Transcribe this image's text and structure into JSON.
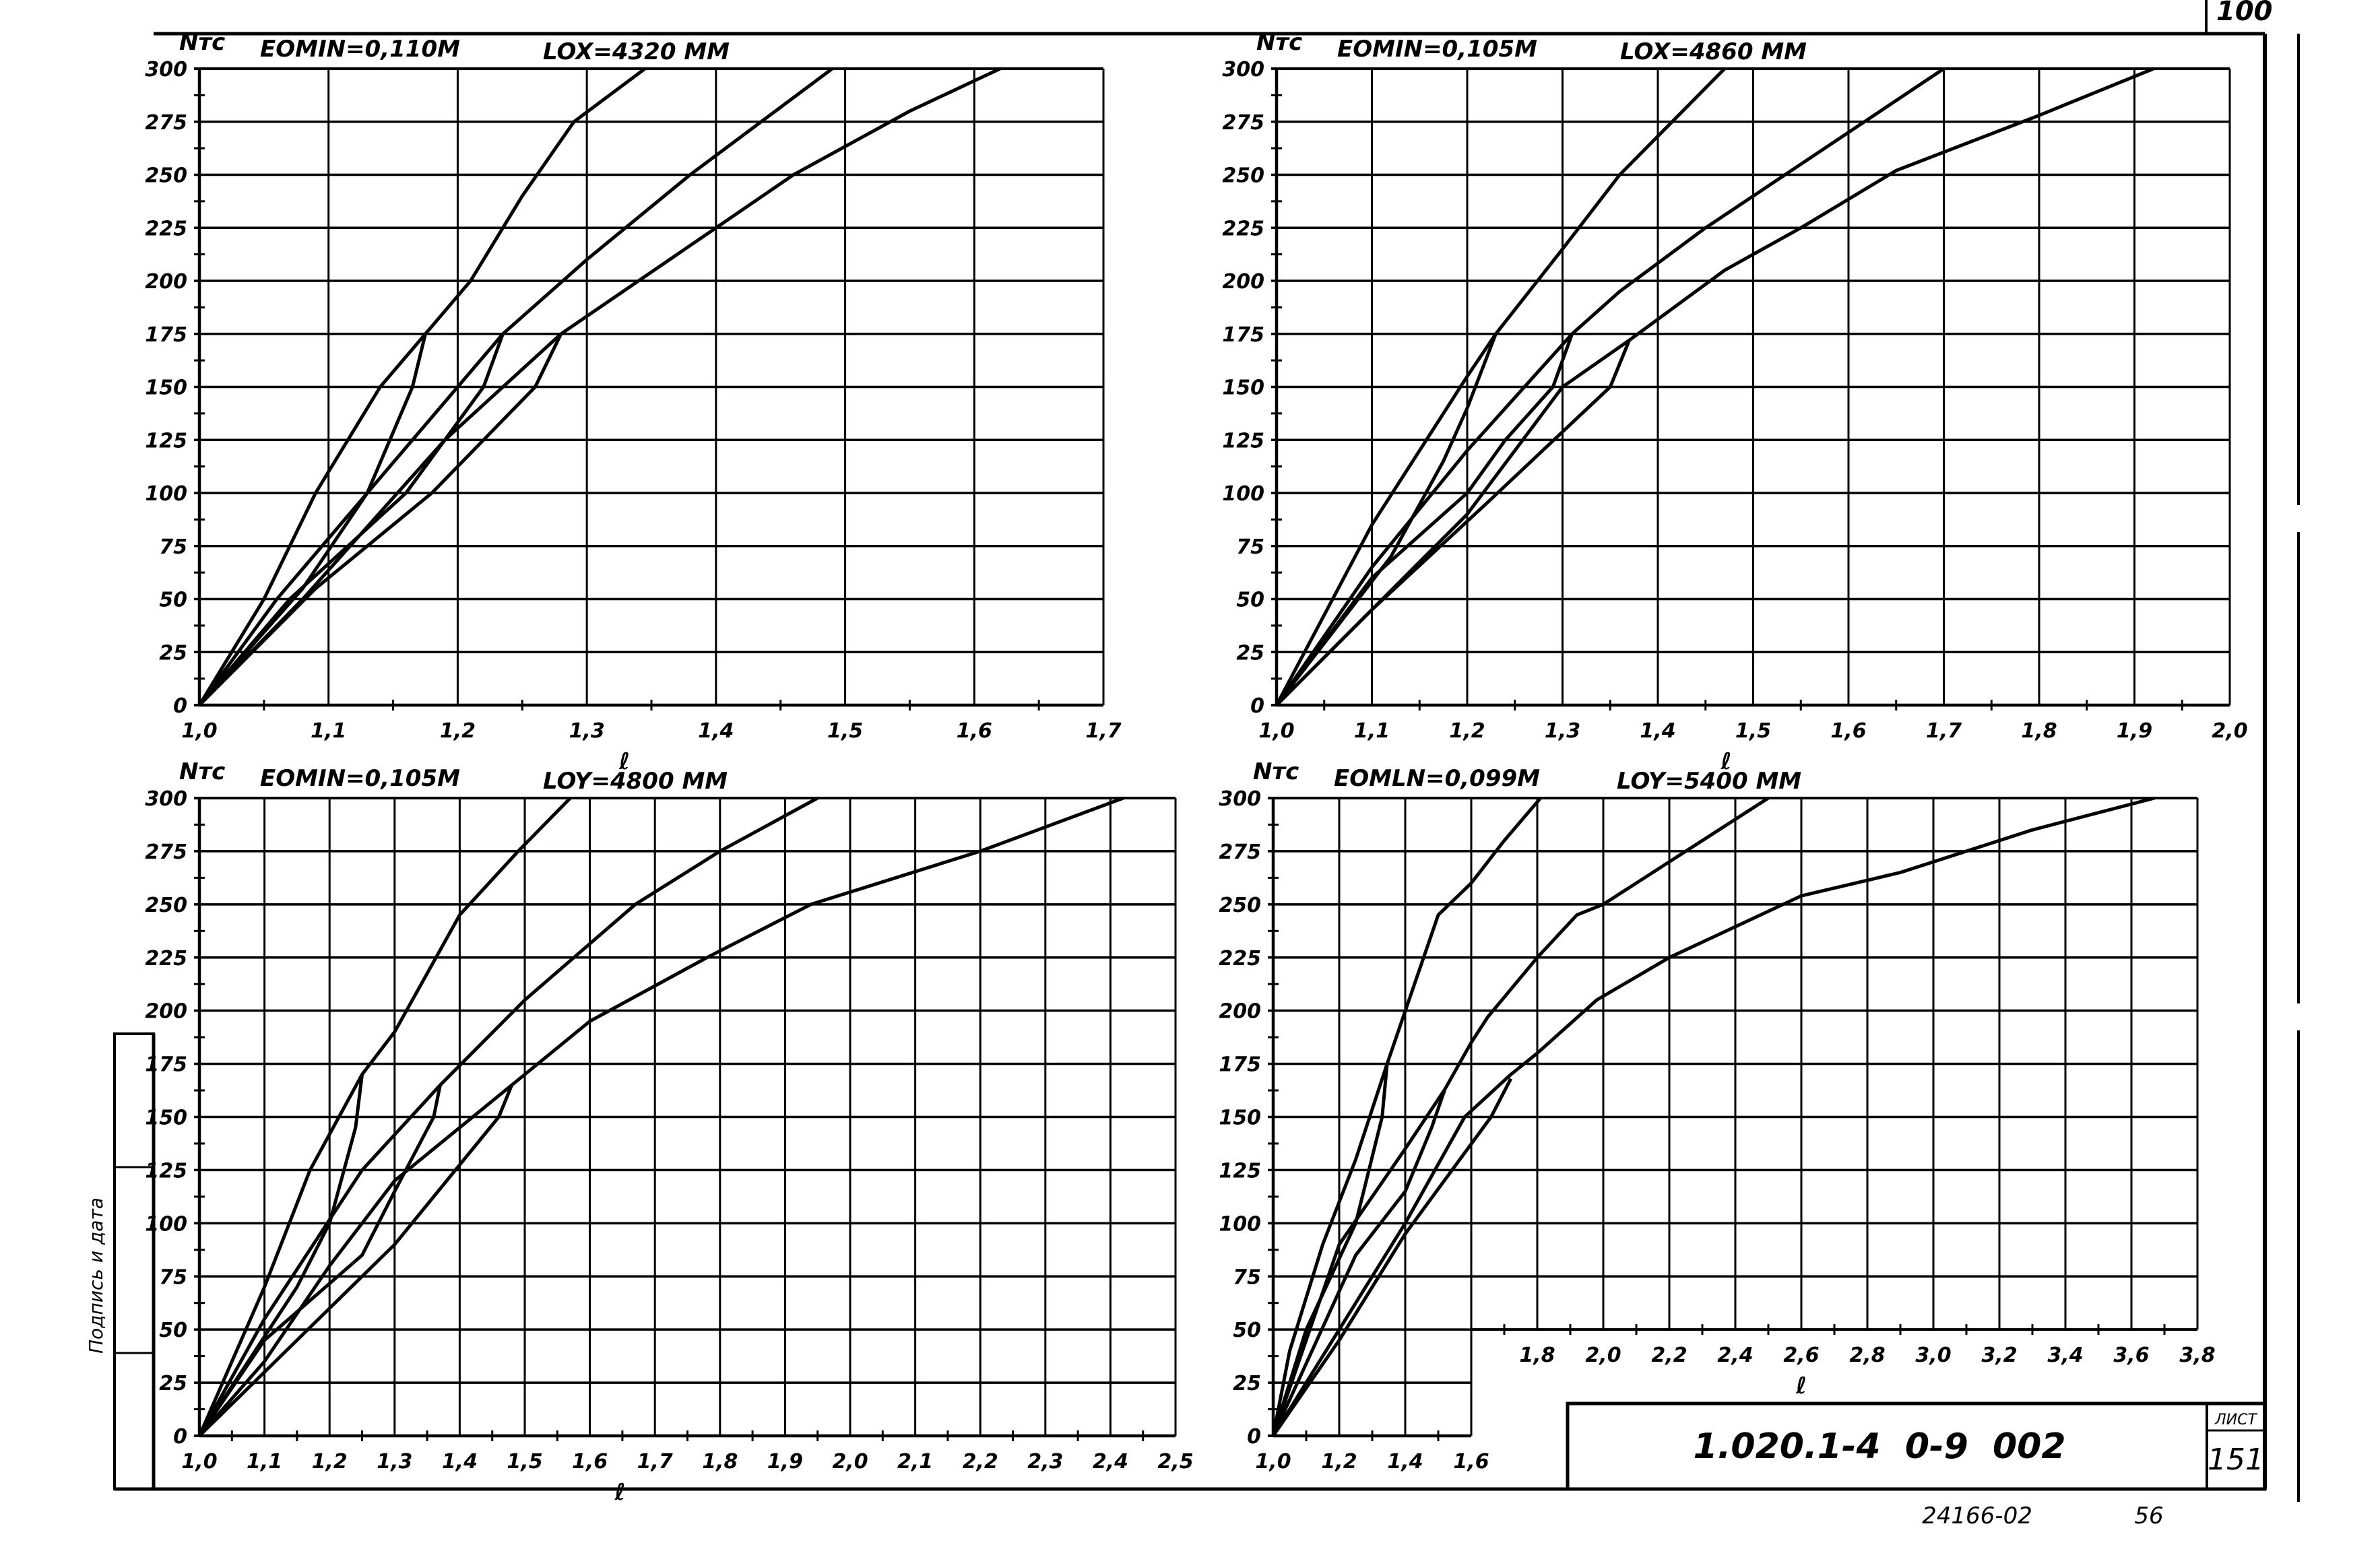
{
  "sheet": {
    "corner_number": "100",
    "side_stamp_label": "Подпись и дата",
    "document_code": "1.020.1-4  0-9  002",
    "sheet_label": "ЛИСТ",
    "sheet_number": "151",
    "archive_number": "24166-02",
    "page_number": "56"
  },
  "chart_data": [
    {
      "type": "line",
      "title": "EOMIN=0,110M",
      "subtitle": "LOX=4320 MM",
      "ylabel": "Nтс",
      "xlabel": "ℓ",
      "xlim": [
        1.0,
        1.7
      ],
      "ylim": [
        0,
        300
      ],
      "x_ticks": [
        "1,0",
        "1,1",
        "1,2",
        "1,3",
        "1,4",
        "1,5",
        "1,6",
        "1,7"
      ],
      "y_ticks": [
        "0",
        "25",
        "50",
        "75",
        "100",
        "125",
        "150",
        "175",
        "200",
        "225",
        "250",
        "275",
        "300"
      ],
      "grid": true,
      "series": [
        {
          "name": "curve-1",
          "points": [
            [
              1.0,
              0
            ],
            [
              1.05,
              50
            ],
            [
              1.09,
              100
            ],
            [
              1.14,
              150
            ],
            [
              1.175,
              175
            ],
            [
              1.21,
              200
            ],
            [
              1.25,
              240
            ],
            [
              1.29,
              275
            ],
            [
              1.345,
              300
            ]
          ]
        },
        {
          "name": "curve-1-branch",
          "points": [
            [
              1.0,
              0
            ],
            [
              1.08,
              55
            ],
            [
              1.13,
              100
            ],
            [
              1.165,
              150
            ],
            [
              1.175,
              175
            ]
          ]
        },
        {
          "name": "curve-2",
          "points": [
            [
              1.0,
              0
            ],
            [
              1.06,
              50
            ],
            [
              1.13,
              100
            ],
            [
              1.2,
              150
            ],
            [
              1.235,
              175
            ],
            [
              1.3,
              210
            ],
            [
              1.38,
              250
            ],
            [
              1.49,
              300
            ]
          ]
        },
        {
          "name": "curve-2-branch",
          "points": [
            [
              1.0,
              0
            ],
            [
              1.07,
              50
            ],
            [
              1.16,
              100
            ],
            [
              1.19,
              125
            ],
            [
              1.22,
              150
            ],
            [
              1.235,
              175
            ]
          ]
        },
        {
          "name": "curve-3",
          "points": [
            [
              1.0,
              0
            ],
            [
              1.08,
              50
            ],
            [
              1.19,
              125
            ],
            [
              1.28,
              175
            ],
            [
              1.4,
              225
            ],
            [
              1.46,
              250
            ],
            [
              1.55,
              280
            ],
            [
              1.62,
              300
            ]
          ]
        },
        {
          "name": "curve-3-branch",
          "points": [
            [
              1.0,
              0
            ],
            [
              1.09,
              55
            ],
            [
              1.18,
              100
            ],
            [
              1.26,
              150
            ],
            [
              1.28,
              175
            ]
          ]
        }
      ]
    },
    {
      "type": "line",
      "title": "EOMIN=0,105M",
      "subtitle": "LOX=4860 MM",
      "ylabel": "Nтс",
      "xlabel": "ℓ",
      "xlim": [
        1.0,
        2.0
      ],
      "ylim": [
        0,
        300
      ],
      "x_ticks": [
        "1,0",
        "1,1",
        "1,2",
        "1,3",
        "1,4",
        "1,5",
        "1,6",
        "1,7",
        "1,8",
        "1,9",
        "2,0"
      ],
      "y_ticks": [
        "0",
        "25",
        "50",
        "75",
        "100",
        "125",
        "150",
        "175",
        "200",
        "225",
        "250",
        "275",
        "300"
      ],
      "grid": true,
      "series": [
        {
          "name": "curve-1",
          "points": [
            [
              1.0,
              0
            ],
            [
              1.1,
              85
            ],
            [
              1.2,
              155
            ],
            [
              1.23,
              175
            ],
            [
              1.3,
              215
            ],
            [
              1.36,
              250
            ],
            [
              1.47,
              300
            ]
          ]
        },
        {
          "name": "curve-1-branch",
          "points": [
            [
              1.0,
              0
            ],
            [
              1.12,
              70
            ],
            [
              1.175,
              115
            ],
            [
              1.2,
              140
            ],
            [
              1.23,
              175
            ]
          ]
        },
        {
          "name": "curve-2",
          "points": [
            [
              1.0,
              0
            ],
            [
              1.1,
              65
            ],
            [
              1.2,
              120
            ],
            [
              1.31,
              175
            ],
            [
              1.36,
              195
            ],
            [
              1.45,
              225
            ],
            [
              1.55,
              255
            ],
            [
              1.7,
              300
            ]
          ]
        },
        {
          "name": "curve-2-branch",
          "points": [
            [
              1.0,
              0
            ],
            [
              1.1,
              60
            ],
            [
              1.2,
              100
            ],
            [
              1.24,
              125
            ],
            [
              1.29,
              150
            ],
            [
              1.31,
              175
            ]
          ]
        },
        {
          "name": "curve-3",
          "points": [
            [
              1.0,
              0
            ],
            [
              1.1,
              45
            ],
            [
              1.2,
              90
            ],
            [
              1.3,
              150
            ],
            [
              1.37,
              172
            ],
            [
              1.47,
              205
            ],
            [
              1.55,
              225
            ],
            [
              1.65,
              252
            ],
            [
              1.8,
              278
            ],
            [
              1.92,
              300
            ]
          ]
        },
        {
          "name": "curve-3-branch",
          "points": [
            [
              1.0,
              0
            ],
            [
              1.1,
              45
            ],
            [
              1.22,
              95
            ],
            [
              1.35,
              150
            ],
            [
              1.37,
              172
            ]
          ]
        }
      ]
    },
    {
      "type": "line",
      "title": "EOMIN=0,105M",
      "subtitle": "LOY=4800 MM",
      "ylabel": "Nтс",
      "xlabel": "ℓ",
      "xlim": [
        1.0,
        2.5
      ],
      "ylim": [
        0,
        300
      ],
      "x_ticks": [
        "1,0",
        "1,1",
        "1,2",
        "1,3",
        "1,4",
        "1,5",
        "1,6",
        "1,7",
        "1,8",
        "1,9",
        "2,0",
        "2,1",
        "2,2",
        "2,3",
        "2,4",
        "2,5"
      ],
      "y_ticks": [
        "0",
        "25",
        "50",
        "75",
        "100",
        "125",
        "150",
        "175",
        "200",
        "225",
        "250",
        "275",
        "300"
      ],
      "grid": true,
      "series": [
        {
          "name": "curve-1",
          "points": [
            [
              1.0,
              0
            ],
            [
              1.1,
              70
            ],
            [
              1.17,
              125
            ],
            [
              1.25,
              170
            ],
            [
              1.3,
              190
            ],
            [
              1.4,
              245
            ],
            [
              1.49,
              275
            ],
            [
              1.57,
              300
            ]
          ]
        },
        {
          "name": "curve-1-branch",
          "points": [
            [
              1.0,
              0
            ],
            [
              1.15,
              70
            ],
            [
              1.2,
              100
            ],
            [
              1.24,
              145
            ],
            [
              1.25,
              170
            ]
          ]
        },
        {
          "name": "curve-2",
          "points": [
            [
              1.0,
              0
            ],
            [
              1.1,
              55
            ],
            [
              1.25,
              125
            ],
            [
              1.37,
              165
            ],
            [
              1.5,
              205
            ],
            [
              1.67,
              250
            ],
            [
              1.8,
              275
            ],
            [
              1.95,
              300
            ]
          ]
        },
        {
          "name": "curve-2-branch",
          "points": [
            [
              1.0,
              0
            ],
            [
              1.1,
              45
            ],
            [
              1.25,
              85
            ],
            [
              1.3,
              115
            ],
            [
              1.36,
              150
            ],
            [
              1.37,
              165
            ]
          ]
        },
        {
          "name": "curve-3",
          "points": [
            [
              1.0,
              0
            ],
            [
              1.1,
              35
            ],
            [
              1.2,
              80
            ],
            [
              1.3,
              120
            ],
            [
              1.48,
              165
            ],
            [
              1.6,
              195
            ],
            [
              1.78,
              225
            ],
            [
              1.94,
              250
            ],
            [
              2.2,
              275
            ],
            [
              2.42,
              300
            ]
          ]
        },
        {
          "name": "curve-3-branch",
          "points": [
            [
              1.0,
              0
            ],
            [
              1.2,
              60
            ],
            [
              1.3,
              90
            ],
            [
              1.46,
              150
            ],
            [
              1.48,
              165
            ]
          ]
        }
      ]
    },
    {
      "type": "line",
      "title": "EOMLN=0,099M",
      "subtitle": "LOY=5400 MM",
      "ylabel": "Nтс",
      "xlabel": "ℓ",
      "xlim": [
        1.0,
        3.8
      ],
      "ylim": [
        0,
        300
      ],
      "x_ticks": [
        "1,0",
        "1,2",
        "1,4",
        "1,6",
        "1,8",
        "2,0",
        "2,2",
        "2,4",
        "2,6",
        "2,8",
        "3,0",
        "3,2",
        "3,4",
        "3,6",
        "3,8"
      ],
      "y_ticks": [
        "0",
        "25",
        "50",
        "75",
        "100",
        "125",
        "150",
        "175",
        "200",
        "225",
        "250",
        "275",
        "300"
      ],
      "grid": true,
      "series": [
        {
          "name": "curve-1",
          "points": [
            [
              1.0,
              0
            ],
            [
              1.05,
              40
            ],
            [
              1.15,
              90
            ],
            [
              1.25,
              130
            ],
            [
              1.345,
              175
            ],
            [
              1.5,
              245
            ],
            [
              1.6,
              260
            ],
            [
              1.7,
              280
            ],
            [
              1.81,
              300
            ]
          ]
        },
        {
          "name": "curve-1-branch",
          "points": [
            [
              1.0,
              0
            ],
            [
              1.1,
              50
            ],
            [
              1.25,
              100
            ],
            [
              1.33,
              150
            ],
            [
              1.345,
              175
            ]
          ]
        },
        {
          "name": "curve-2",
          "points": [
            [
              1.0,
              0
            ],
            [
              1.2,
              90
            ],
            [
              1.4,
              135
            ],
            [
              1.52,
              163
            ],
            [
              1.6,
              185
            ],
            [
              1.65,
              197
            ],
            [
              1.8,
              225
            ],
            [
              1.92,
              245
            ],
            [
              2.0,
              250
            ],
            [
              2.2,
              270
            ],
            [
              2.5,
              300
            ]
          ]
        },
        {
          "name": "curve-2-branch",
          "points": [
            [
              1.0,
              0
            ],
            [
              1.25,
              85
            ],
            [
              1.4,
              115
            ],
            [
              1.48,
              145
            ],
            [
              1.52,
              163
            ]
          ]
        },
        {
          "name": "curve-3",
          "points": [
            [
              1.0,
              0
            ],
            [
              1.2,
              50
            ],
            [
              1.4,
              100
            ],
            [
              1.58,
              150
            ],
            [
              1.72,
              170
            ],
            [
              1.8,
              180
            ],
            [
              1.98,
              205
            ],
            [
              2.2,
              225
            ],
            [
              2.6,
              254
            ],
            [
              2.9,
              265
            ],
            [
              3.3,
              285
            ],
            [
              3.67,
              300
            ]
          ]
        },
        {
          "name": "curve-3-branch",
          "points": [
            [
              1.0,
              0
            ],
            [
              1.2,
              45
            ],
            [
              1.4,
              95
            ],
            [
              1.66,
              150
            ],
            [
              1.72,
              168
            ]
          ]
        }
      ]
    }
  ]
}
